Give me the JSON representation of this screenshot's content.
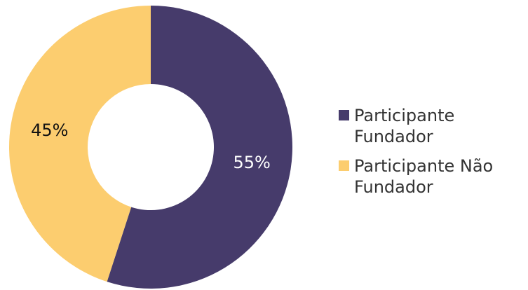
{
  "chart_data": {
    "type": "pie",
    "donut": true,
    "categories": [
      "Participante Fundador",
      "Participante Não Fundador"
    ],
    "values": [
      55,
      45
    ],
    "value_labels": [
      "55%",
      "45%"
    ],
    "colors": [
      "#463b6b",
      "#fccd6f"
    ],
    "label_colors": [
      "#ffffff",
      "#111111"
    ],
    "legend": "right"
  }
}
